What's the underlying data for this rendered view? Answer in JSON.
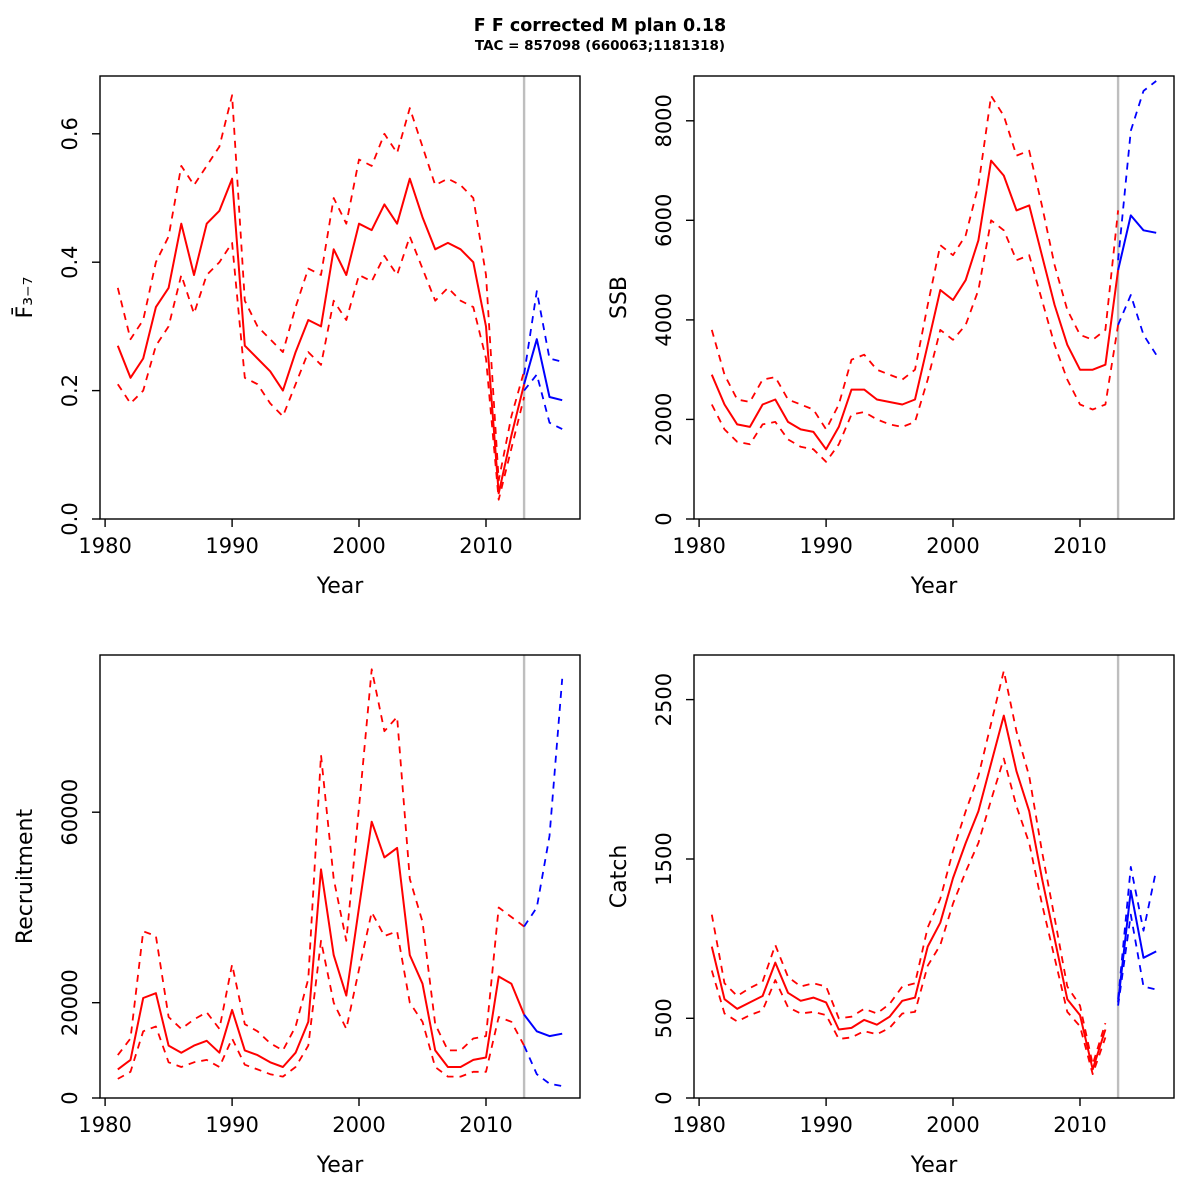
{
  "header": {
    "title": "F F corrected M plan 0.18",
    "subtitle": "TAC = 857098 (660063;1181318)"
  },
  "colors": {
    "history": "#FF0000",
    "forecast": "#0000FF",
    "divider": "#BEBEBE",
    "axis": "#000000"
  },
  "chart_data": [
    {
      "type": "line",
      "name": "fbar",
      "title": "",
      "xlabel": "Year",
      "ylabel": "F̄₃₋₇",
      "xlim": [
        1979.6,
        2017.4
      ],
      "ylim": [
        0,
        0.69
      ],
      "grid": false,
      "legend": "none",
      "divider_x": 2013,
      "xticks": [
        {
          "v": 1980,
          "label": "1980"
        },
        {
          "v": 1990,
          "label": "1990"
        },
        {
          "v": 2000,
          "label": "2000"
        },
        {
          "v": 2010,
          "label": "2010"
        }
      ],
      "yticks": [
        {
          "v": 0,
          "label": "0.0"
        },
        {
          "v": 0.2,
          "label": "0.2"
        },
        {
          "v": 0.4,
          "label": "0.4"
        },
        {
          "v": 0.6,
          "label": "0.6"
        }
      ],
      "years_hist": [
        1981,
        1982,
        1983,
        1984,
        1985,
        1986,
        1987,
        1988,
        1989,
        1990,
        1991,
        1992,
        1993,
        1994,
        1995,
        1996,
        1997,
        1998,
        1999,
        2000,
        2001,
        2002,
        2003,
        2004,
        2005,
        2006,
        2007,
        2008,
        2009,
        2010,
        2011,
        2012,
        2013
      ],
      "years_fore": [
        2013,
        2014,
        2015,
        2016
      ],
      "series": [
        {
          "name": "fbar-upper-history",
          "role": "history",
          "style": "dashed",
          "x": "years_hist",
          "values": [
            0.36,
            0.28,
            0.31,
            0.4,
            0.44,
            0.55,
            0.52,
            0.55,
            0.58,
            0.66,
            0.34,
            0.3,
            0.28,
            0.26,
            0.33,
            0.39,
            0.38,
            0.5,
            0.46,
            0.56,
            0.55,
            0.6,
            0.57,
            0.64,
            0.58,
            0.52,
            0.53,
            0.52,
            0.5,
            0.38,
            0.06,
            0.16,
            0.23
          ]
        },
        {
          "name": "fbar-lower-history",
          "role": "history",
          "style": "dashed",
          "x": "years_hist",
          "values": [
            0.21,
            0.18,
            0.2,
            0.27,
            0.3,
            0.38,
            0.32,
            0.38,
            0.4,
            0.43,
            0.22,
            0.21,
            0.18,
            0.16,
            0.21,
            0.26,
            0.24,
            0.34,
            0.31,
            0.38,
            0.37,
            0.41,
            0.38,
            0.44,
            0.39,
            0.34,
            0.36,
            0.34,
            0.33,
            0.25,
            0.03,
            0.11,
            0.19
          ]
        },
        {
          "name": "fbar-median-history",
          "role": "history",
          "style": "solid",
          "x": "years_hist",
          "values": [
            0.27,
            0.22,
            0.25,
            0.33,
            0.36,
            0.46,
            0.38,
            0.46,
            0.48,
            0.53,
            0.27,
            0.25,
            0.23,
            0.2,
            0.26,
            0.31,
            0.3,
            0.42,
            0.38,
            0.46,
            0.45,
            0.49,
            0.46,
            0.53,
            0.47,
            0.42,
            0.43,
            0.42,
            0.4,
            0.3,
            0.04,
            0.13,
            0.21
          ]
        },
        {
          "name": "fbar-upper-forecast",
          "role": "forecast",
          "style": "dashed",
          "x": "years_fore",
          "values": [
            0.225,
            0.355,
            0.25,
            0.245
          ]
        },
        {
          "name": "fbar-lower-forecast",
          "role": "forecast",
          "style": "dashed",
          "x": "years_fore",
          "values": [
            0.2,
            0.225,
            0.15,
            0.14
          ]
        },
        {
          "name": "fbar-median-forecast",
          "role": "forecast",
          "style": "solid",
          "x": "years_fore",
          "values": [
            0.21,
            0.28,
            0.19,
            0.185
          ]
        }
      ]
    },
    {
      "type": "line",
      "name": "ssb",
      "title": "",
      "xlabel": "Year",
      "ylabel": "SSB",
      "xlim": [
        1979.6,
        2017.4
      ],
      "ylim": [
        0,
        8900
      ],
      "grid": false,
      "legend": "none",
      "divider_x": 2013,
      "xticks": [
        {
          "v": 1980,
          "label": "1980"
        },
        {
          "v": 1990,
          "label": "1990"
        },
        {
          "v": 2000,
          "label": "2000"
        },
        {
          "v": 2010,
          "label": "2010"
        }
      ],
      "yticks": [
        {
          "v": 0,
          "label": "0"
        },
        {
          "v": 2000,
          "label": "2000"
        },
        {
          "v": 4000,
          "label": "4000"
        },
        {
          "v": 6000,
          "label": "6000"
        },
        {
          "v": 8000,
          "label": "8000"
        }
      ],
      "years_hist": [
        1981,
        1982,
        1983,
        1984,
        1985,
        1986,
        1987,
        1988,
        1989,
        1990,
        1991,
        1992,
        1993,
        1994,
        1995,
        1996,
        1997,
        1998,
        1999,
        2000,
        2001,
        2002,
        2003,
        2004,
        2005,
        2006,
        2007,
        2008,
        2009,
        2010,
        2011,
        2012,
        2013
      ],
      "years_fore": [
        2013,
        2014,
        2015,
        2016
      ],
      "series": [
        {
          "name": "ssb-upper-history",
          "role": "history",
          "style": "dashed",
          "x": "years_hist",
          "values": [
            3800,
            2900,
            2400,
            2350,
            2800,
            2850,
            2400,
            2300,
            2200,
            1800,
            2300,
            3200,
            3300,
            3000,
            2900,
            2800,
            3000,
            4300,
            5500,
            5300,
            5700,
            6700,
            8500,
            8100,
            7300,
            7400,
            6300,
            5100,
            4200,
            3700,
            3600,
            3800,
            6200
          ]
        },
        {
          "name": "ssb-lower-history",
          "role": "history",
          "style": "dashed",
          "x": "years_hist",
          "values": [
            2300,
            1800,
            1550,
            1500,
            1900,
            1950,
            1600,
            1450,
            1400,
            1150,
            1500,
            2100,
            2150,
            2000,
            1900,
            1850,
            1950,
            2800,
            3800,
            3600,
            3900,
            4600,
            6000,
            5800,
            5200,
            5300,
            4400,
            3500,
            2800,
            2300,
            2200,
            2300,
            3900
          ]
        },
        {
          "name": "ssb-median-history",
          "role": "history",
          "style": "solid",
          "x": "years_hist",
          "values": [
            2900,
            2300,
            1900,
            1850,
            2300,
            2400,
            1950,
            1800,
            1750,
            1400,
            1850,
            2600,
            2600,
            2400,
            2350,
            2300,
            2400,
            3500,
            4600,
            4400,
            4800,
            5600,
            7200,
            6900,
            6200,
            6300,
            5300,
            4300,
            3500,
            3000,
            3000,
            3100,
            5000
          ]
        },
        {
          "name": "ssb-upper-forecast",
          "role": "forecast",
          "style": "dashed",
          "x": "years_fore",
          "values": [
            5200,
            7800,
            8600,
            8800
          ]
        },
        {
          "name": "ssb-lower-forecast",
          "role": "forecast",
          "style": "dashed",
          "x": "years_fore",
          "values": [
            3900,
            4500,
            3700,
            3300
          ]
        },
        {
          "name": "ssb-median-forecast",
          "role": "forecast",
          "style": "solid",
          "x": "years_fore",
          "values": [
            5000,
            6100,
            5800,
            5750
          ]
        }
      ]
    },
    {
      "type": "line",
      "name": "recruitment",
      "title": "",
      "xlabel": "Year",
      "ylabel": "Recruitment",
      "xlim": [
        1979.6,
        2017.4
      ],
      "ylim": [
        0,
        93000
      ],
      "grid": false,
      "legend": "none",
      "divider_x": 2013,
      "xticks": [
        {
          "v": 1980,
          "label": "1980"
        },
        {
          "v": 1990,
          "label": "1990"
        },
        {
          "v": 2000,
          "label": "2000"
        },
        {
          "v": 2010,
          "label": "2010"
        }
      ],
      "yticks": [
        {
          "v": 0,
          "label": "0"
        },
        {
          "v": 20000,
          "label": "20000"
        },
        {
          "v": 60000,
          "label": "60000"
        }
      ],
      "years_hist": [
        1981,
        1982,
        1983,
        1984,
        1985,
        1986,
        1987,
        1988,
        1989,
        1990,
        1991,
        1992,
        1993,
        1994,
        1995,
        1996,
        1997,
        1998,
        1999,
        2000,
        2001,
        2002,
        2003,
        2004,
        2005,
        2006,
        2007,
        2008,
        2009,
        2010,
        2011,
        2012,
        2013
      ],
      "years_fore": [
        2013,
        2014,
        2015,
        2016
      ],
      "series": [
        {
          "name": "recruitment-upper-history",
          "role": "history",
          "style": "dashed",
          "x": "years_hist",
          "values": [
            9000,
            12500,
            35000,
            34000,
            17000,
            14500,
            16500,
            18000,
            14500,
            28000,
            15500,
            14000,
            11500,
            10000,
            15000,
            25000,
            72000,
            46000,
            33000,
            61000,
            90000,
            77000,
            80000,
            46000,
            37000,
            15500,
            10000,
            10000,
            12500,
            13000,
            40000,
            38000,
            36000
          ]
        },
        {
          "name": "recruitment-lower-history",
          "role": "history",
          "style": "dashed",
          "x": "years_hist",
          "values": [
            4000,
            5500,
            14000,
            15000,
            7500,
            6500,
            7500,
            8000,
            6500,
            12500,
            7000,
            6000,
            5000,
            4500,
            6500,
            11000,
            33000,
            20000,
            14500,
            27000,
            39000,
            34000,
            35000,
            20000,
            16000,
            6500,
            4500,
            4500,
            5500,
            5500,
            17000,
            16000,
            11000
          ]
        },
        {
          "name": "recruitment-median-history",
          "role": "history",
          "style": "solid",
          "x": "years_hist",
          "values": [
            6000,
            8000,
            21000,
            22000,
            11000,
            9500,
            11000,
            12000,
            9500,
            18500,
            10000,
            9000,
            7500,
            6500,
            9500,
            16000,
            48000,
            30000,
            21500,
            40000,
            58000,
            50500,
            52500,
            30000,
            24000,
            10000,
            6500,
            6500,
            8000,
            8500,
            25500,
            24000,
            17500
          ]
        },
        {
          "name": "recruitment-upper-forecast",
          "role": "forecast",
          "style": "dashed",
          "x": "years_fore",
          "values": [
            36000,
            40000,
            55000,
            88000
          ]
        },
        {
          "name": "recruitment-lower-forecast",
          "role": "forecast",
          "style": "dashed",
          "x": "years_fore",
          "values": [
            11000,
            5000,
            3000,
            2500
          ]
        },
        {
          "name": "recruitment-median-forecast",
          "role": "forecast",
          "style": "solid",
          "x": "years_fore",
          "values": [
            17500,
            14000,
            13000,
            13500
          ]
        }
      ]
    },
    {
      "type": "line",
      "name": "catch",
      "title": "",
      "xlabel": "Year",
      "ylabel": "Catch",
      "xlim": [
        1979.6,
        2017.4
      ],
      "ylim": [
        0,
        2780
      ],
      "grid": false,
      "legend": "none",
      "divider_x": 2013,
      "xticks": [
        {
          "v": 1980,
          "label": "1980"
        },
        {
          "v": 1990,
          "label": "1990"
        },
        {
          "v": 2000,
          "label": "2000"
        },
        {
          "v": 2010,
          "label": "2010"
        }
      ],
      "yticks": [
        {
          "v": 0,
          "label": "0"
        },
        {
          "v": 500,
          "label": "500"
        },
        {
          "v": 1500,
          "label": "1500"
        },
        {
          "v": 2500,
          "label": "2500"
        }
      ],
      "years_hist": [
        1981,
        1982,
        1983,
        1984,
        1985,
        1986,
        1987,
        1988,
        1989,
        1990,
        1991,
        1992,
        1993,
        1994,
        1995,
        1996,
        1997,
        1998,
        1999,
        2000,
        2001,
        2002,
        2003,
        2004,
        2005,
        2006,
        2007,
        2008,
        2009,
        2010,
        2011,
        2012
      ],
      "years_fore": [
        2013,
        2014,
        2015,
        2016
      ],
      "series": [
        {
          "name": "catch-upper-history",
          "role": "history",
          "style": "dashed",
          "x": "years_hist",
          "values": [
            1150,
            720,
            640,
            690,
            730,
            960,
            760,
            700,
            720,
            700,
            500,
            510,
            560,
            530,
            590,
            700,
            720,
            1070,
            1250,
            1550,
            1800,
            2020,
            2350,
            2680,
            2300,
            2020,
            1550,
            1130,
            700,
            580,
            210,
            470
          ]
        },
        {
          "name": "catch-lower-history",
          "role": "history",
          "style": "dashed",
          "x": "years_hist",
          "values": [
            800,
            530,
            480,
            520,
            550,
            740,
            570,
            530,
            540,
            520,
            370,
            380,
            420,
            400,
            440,
            530,
            540,
            830,
            960,
            1220,
            1420,
            1600,
            1870,
            2130,
            1830,
            1600,
            1220,
            880,
            540,
            450,
            150,
            380
          ]
        },
        {
          "name": "catch-median-history",
          "role": "history",
          "style": "solid",
          "x": "years_hist",
          "values": [
            950,
            620,
            560,
            600,
            640,
            850,
            660,
            610,
            630,
            600,
            430,
            440,
            490,
            460,
            510,
            610,
            630,
            950,
            1100,
            1380,
            1600,
            1800,
            2100,
            2400,
            2050,
            1800,
            1380,
            1000,
            620,
            520,
            180,
            430
          ]
        },
        {
          "name": "catch-upper-forecast",
          "role": "forecast",
          "style": "dashed",
          "x": "years_fore",
          "values": [
            620,
            1450,
            1050,
            1430
          ]
        },
        {
          "name": "catch-lower-forecast",
          "role": "forecast",
          "style": "dashed",
          "x": "years_fore",
          "values": [
            580,
            1150,
            700,
            680
          ]
        },
        {
          "name": "catch-median-forecast",
          "role": "forecast",
          "style": "solid",
          "x": "years_fore",
          "values": [
            600,
            1300,
            880,
            920
          ]
        }
      ]
    }
  ]
}
